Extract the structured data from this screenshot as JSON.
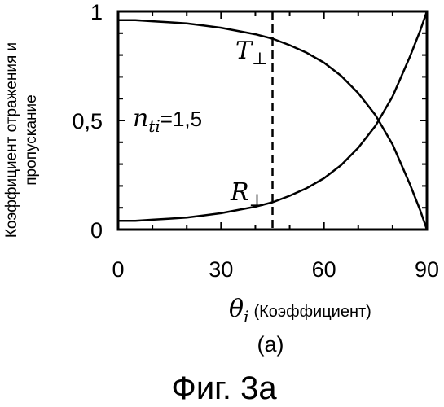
{
  "chart_data": {
    "type": "line",
    "xlabel_symbol": "θ",
    "xlabel_subscript": "i",
    "xlabel_text": "(Коэффициент)",
    "ylabel_line1": "Коэффициент отражения и",
    "ylabel_line2": "пропускание",
    "xlim": [
      0,
      90
    ],
    "ylim": [
      0,
      1
    ],
    "x_ticks": [
      0,
      30,
      60,
      90
    ],
    "x_tick_labels": [
      "0",
      "30",
      "60",
      "90"
    ],
    "y_ticks": [
      0,
      0.5,
      1
    ],
    "y_tick_labels": [
      "0",
      "0,5",
      "1"
    ],
    "grid": false,
    "marker_line_x": 45,
    "annotation": {
      "symbol": "n",
      "subscript": "ti",
      "text": "=1,5"
    },
    "series": [
      {
        "label_symbol": "T",
        "label_subscript": "⊥",
        "x": [
          0,
          5,
          10,
          15,
          20,
          25,
          30,
          35,
          40,
          45,
          50,
          55,
          60,
          65,
          70,
          75,
          80,
          85,
          88,
          90
        ],
        "y": [
          0.96,
          0.96,
          0.955,
          0.95,
          0.945,
          0.935,
          0.925,
          0.91,
          0.895,
          0.875,
          0.845,
          0.81,
          0.765,
          0.705,
          0.625,
          0.525,
          0.39,
          0.21,
          0.09,
          0.0
        ]
      },
      {
        "label_symbol": "R",
        "label_subscript": "⊥",
        "x": [
          0,
          5,
          10,
          15,
          20,
          25,
          30,
          35,
          40,
          45,
          50,
          55,
          60,
          65,
          70,
          75,
          80,
          85,
          88,
          90
        ],
        "y": [
          0.04,
          0.04,
          0.045,
          0.05,
          0.055,
          0.065,
          0.075,
          0.09,
          0.105,
          0.125,
          0.155,
          0.19,
          0.235,
          0.295,
          0.375,
          0.475,
          0.61,
          0.79,
          0.91,
          1.0
        ]
      }
    ]
  },
  "caption": "(a)",
  "figure_title": "Фиг. 3а"
}
